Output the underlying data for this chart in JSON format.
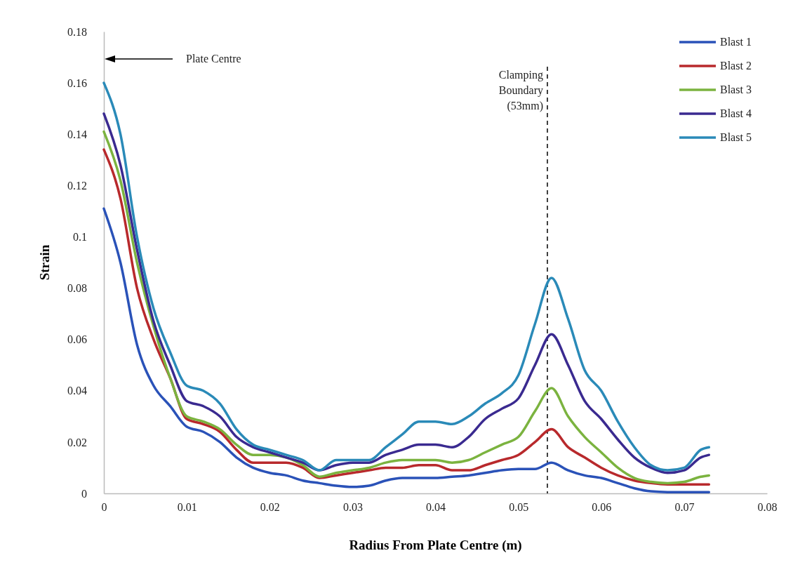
{
  "chart_data": {
    "type": "line",
    "xlabel": "Radius From Plate Centre (m)",
    "ylabel": "Strain",
    "x": [
      0,
      0.002,
      0.004,
      0.006,
      0.008,
      0.01,
      0.012,
      0.014,
      0.016,
      0.018,
      0.02,
      0.022,
      0.024,
      0.026,
      0.028,
      0.03,
      0.032,
      0.034,
      0.036,
      0.038,
      0.04,
      0.042,
      0.044,
      0.046,
      0.048,
      0.05,
      0.052,
      0.054,
      0.056,
      0.058,
      0.06,
      0.062,
      0.064,
      0.066,
      0.068,
      0.07,
      0.072,
      0.073
    ],
    "series": [
      {
        "name": "Blast 1",
        "color": "#2a52b8",
        "values": [
          0.111,
          0.09,
          0.058,
          0.042,
          0.034,
          0.026,
          0.024,
          0.02,
          0.014,
          0.01,
          0.008,
          0.007,
          0.005,
          0.004,
          0.003,
          0.0025,
          0.003,
          0.005,
          0.006,
          0.006,
          0.006,
          0.0065,
          0.007,
          0.008,
          0.009,
          0.0095,
          0.0095,
          0.012,
          0.009,
          0.007,
          0.006,
          0.004,
          0.002,
          0.0008,
          0.0005,
          0.0005,
          0.0005,
          0.0005
        ]
      },
      {
        "name": "Blast 2",
        "color": "#b8292c",
        "values": [
          0.134,
          0.115,
          0.08,
          0.06,
          0.045,
          0.029,
          0.027,
          0.024,
          0.017,
          0.012,
          0.012,
          0.012,
          0.01,
          0.006,
          0.007,
          0.008,
          0.009,
          0.01,
          0.01,
          0.011,
          0.011,
          0.009,
          0.009,
          0.011,
          0.013,
          0.015,
          0.02,
          0.025,
          0.018,
          0.014,
          0.01,
          0.007,
          0.005,
          0.004,
          0.0035,
          0.0035,
          0.0035,
          0.0035
        ]
      },
      {
        "name": "Blast 3",
        "color": "#7bb33f",
        "values": [
          0.141,
          0.122,
          0.09,
          0.065,
          0.045,
          0.03,
          0.028,
          0.025,
          0.019,
          0.015,
          0.015,
          0.014,
          0.011,
          0.0065,
          0.008,
          0.009,
          0.01,
          0.012,
          0.013,
          0.013,
          0.013,
          0.012,
          0.013,
          0.016,
          0.019,
          0.022,
          0.032,
          0.041,
          0.03,
          0.022,
          0.016,
          0.01,
          0.006,
          0.0045,
          0.004,
          0.0045,
          0.0065,
          0.007
        ]
      },
      {
        "name": "Blast 4",
        "color": "#3a2a90",
        "values": [
          0.148,
          0.128,
          0.095,
          0.067,
          0.05,
          0.036,
          0.034,
          0.03,
          0.022,
          0.018,
          0.016,
          0.014,
          0.012,
          0.009,
          0.011,
          0.012,
          0.012,
          0.015,
          0.017,
          0.019,
          0.019,
          0.018,
          0.022,
          0.029,
          0.033,
          0.037,
          0.05,
          0.062,
          0.05,
          0.036,
          0.029,
          0.021,
          0.014,
          0.01,
          0.008,
          0.009,
          0.014,
          0.015
        ]
      },
      {
        "name": "Blast 5",
        "color": "#2a8ab8",
        "values": [
          0.16,
          0.14,
          0.1,
          0.072,
          0.055,
          0.042,
          0.04,
          0.035,
          0.025,
          0.019,
          0.017,
          0.015,
          0.013,
          0.009,
          0.013,
          0.013,
          0.013,
          0.018,
          0.023,
          0.028,
          0.028,
          0.027,
          0.03,
          0.035,
          0.039,
          0.046,
          0.066,
          0.084,
          0.068,
          0.048,
          0.04,
          0.028,
          0.018,
          0.011,
          0.009,
          0.01,
          0.017,
          0.018
        ]
      }
    ],
    "xlim": [
      0,
      0.08
    ],
    "xticks": [
      0,
      0.01,
      0.02,
      0.03,
      0.04,
      0.05,
      0.06,
      0.07,
      0.08
    ],
    "ylim": [
      0,
      0.18
    ],
    "yticks": [
      0,
      0.02,
      0.04,
      0.06,
      0.08,
      0.1,
      0.12,
      0.14,
      0.16,
      0.18
    ],
    "ref_lines": [
      {
        "axis": "x",
        "value": 0.0535,
        "label": "Clamping\nBoundary\n(53mm)",
        "color": "#000000",
        "line_style": "dashed"
      }
    ],
    "annotations": [
      "Plate Centre"
    ],
    "legend": "top right",
    "grid": false,
    "marker": "none",
    "line_style": "solid"
  }
}
